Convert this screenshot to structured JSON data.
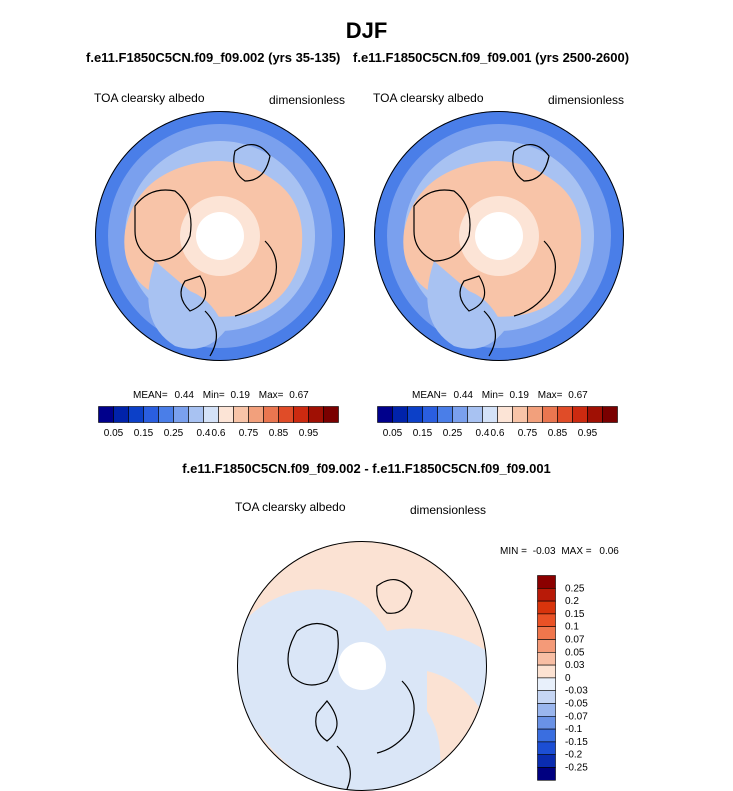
{
  "page": {
    "title": "DJF"
  },
  "top_left": {
    "case_label": "f.e11.F1850C5CN.f09_f09.002 (yrs 35-135)",
    "variable": "TOA clearsky albedo",
    "units": "dimensionless",
    "stats": {
      "mean_label": "MEAN=",
      "mean": "0.44",
      "min_label": "Min=",
      "min": "0.19",
      "max_label": "Max=",
      "max": "0.67"
    }
  },
  "top_right": {
    "case_label": "f.e11.F1850C5CN.f09_f09.001 (yrs 2500-2600)",
    "variable": "TOA clearsky albedo",
    "units": "dimensionless",
    "stats": {
      "mean_label": "MEAN=",
      "mean": "0.44",
      "min_label": "Min=",
      "min": "0.19",
      "max_label": "Max=",
      "max": "0.67"
    }
  },
  "diff": {
    "case_label": "f.e11.F1850C5CN.f09_f09.002 - f.e11.F1850C5CN.f09_f09.001",
    "variable": "TOA clearsky albedo",
    "units": "dimensionless",
    "minmax": {
      "min_label": "MIN =",
      "min": "-0.03",
      "max_label": "MAX =",
      "max": "0.06"
    }
  },
  "colorbar_abs": {
    "colors": [
      "#00008b",
      "#0022aa",
      "#0c40c8",
      "#2a5ee0",
      "#4a7ee8",
      "#7aa0ee",
      "#a8c2f2",
      "#d4e2f8",
      "#fce4d6",
      "#f8c4a8",
      "#f2a07c",
      "#ea7650",
      "#e04c28",
      "#cc2a10",
      "#a01004",
      "#7a0000"
    ],
    "tick_labels": [
      "0.05",
      "0.15",
      "0.25",
      "0.4",
      "0.6",
      "0.75",
      "0.85",
      "0.95"
    ]
  },
  "colorbar_diff": {
    "colors_top_to_bottom": [
      "#8b0000",
      "#b81a08",
      "#d8340c",
      "#ea5226",
      "#f0764c",
      "#f49a78",
      "#f8bea4",
      "#fce2d2",
      "#e8f0fb",
      "#c6d6f4",
      "#9ab6ee",
      "#6a92e6",
      "#3a6ee0",
      "#1c4ed4",
      "#0a2cb0",
      "#000080"
    ],
    "tick_labels_top_to_bottom": [
      "0.25",
      "0.2",
      "0.15",
      "0.1",
      "0.07",
      "0.05",
      "0.03",
      "0",
      "-0.03",
      "-0.05",
      "-0.07",
      "-0.1",
      "-0.15",
      "-0.2",
      "-0.25"
    ]
  },
  "map_colors": {
    "deep_blue": "#4a7ee8",
    "mid_blue": "#7aa0ee",
    "light_blue": "#a8c2f2",
    "pale_blue": "#d4e2f8",
    "peach": "#f8c4a8",
    "pale_peach": "#fce4d6",
    "pole_hole": "#ffffff",
    "diff_blue": "#dae6f7",
    "diff_peach": "#fbe2d3"
  }
}
